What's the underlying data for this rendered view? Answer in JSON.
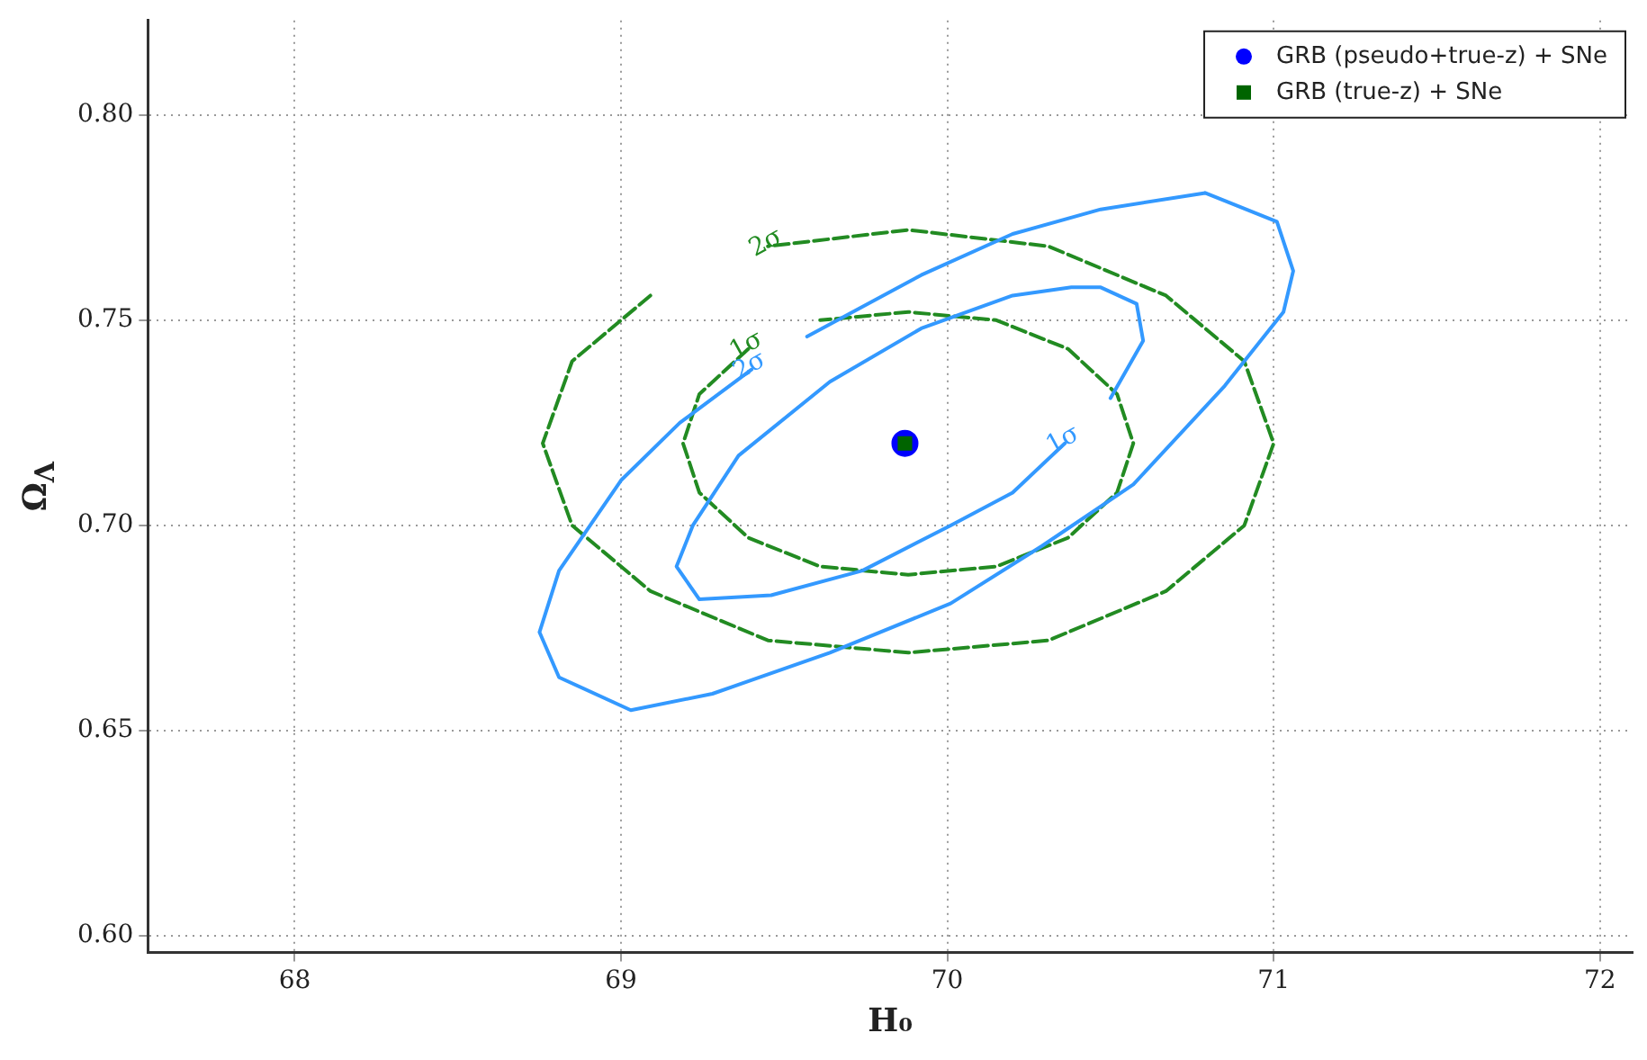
{
  "chart_data": {
    "type": "line",
    "xlabel": "H₀",
    "ylabel": "Ω$_{Λ}$",
    "xlim": [
      67.55,
      72.1
    ],
    "ylim": [
      0.596,
      0.823
    ],
    "xticks": [
      68,
      69,
      70,
      71,
      72
    ],
    "yticks": [
      {
        "value": 0.6,
        "label": "0.60"
      },
      {
        "value": 0.65,
        "label": "0.65"
      },
      {
        "value": 0.7,
        "label": "0.70"
      },
      {
        "value": 0.75,
        "label": "0.75"
      },
      {
        "value": 0.8,
        "label": "0.80"
      }
    ],
    "grid": true,
    "legend": "top right",
    "series": [
      {
        "color": "#3399ff",
        "marker": "none",
        "line_style": "solid",
        "x": [
          70.79,
          71.01,
          71.06,
          71.03,
          70.85,
          70.57,
          70.29,
          70.01,
          69.64,
          69.28,
          69.03,
          68.81,
          68.75,
          68.81,
          69.0,
          69.18,
          69.4,
          null,
          69.57,
          69.92,
          70.2,
          70.47,
          70.79
        ],
        "values": [
          0.781,
          0.774,
          0.762,
          0.752,
          0.734,
          0.71,
          0.695,
          0.681,
          0.669,
          0.659,
          0.655,
          0.663,
          0.674,
          0.689,
          0.711,
          0.725,
          0.738,
          null,
          0.746,
          0.761,
          0.771,
          0.777,
          0.781
        ]
      },
      {
        "color": "#3399ff",
        "marker": "none",
        "line_style": "solid",
        "x": [
          70.5,
          70.6,
          70.58,
          70.47,
          70.38,
          70.2,
          69.92,
          69.64,
          69.36,
          69.22,
          69.17,
          69.24,
          69.46,
          69.74,
          70.01,
          70.2,
          70.36
        ],
        "values": [
          0.731,
          0.745,
          0.754,
          0.758,
          0.758,
          0.756,
          0.748,
          0.735,
          0.717,
          0.7,
          0.69,
          0.682,
          0.683,
          0.689,
          0.7,
          0.708,
          0.72
        ]
      },
      {
        "color": "#228b22",
        "marker": "none",
        "line_style": "dashed",
        "x": [
          69.09,
          68.85,
          68.76,
          68.85,
          69.09,
          69.45,
          69.88,
          70.31,
          70.67,
          70.91,
          71.0,
          70.91,
          70.67,
          70.31,
          69.88,
          69.45
        ],
        "values": [
          0.756,
          0.74,
          0.72,
          0.7,
          0.684,
          0.672,
          0.669,
          0.672,
          0.684,
          0.7,
          0.72,
          0.74,
          0.756,
          0.768,
          0.772,
          0.768
        ]
      },
      {
        "color": "#228b22",
        "marker": "none",
        "line_style": "dashed",
        "x": [
          69.39,
          69.24,
          69.19,
          69.24,
          69.39,
          69.61,
          69.88,
          70.15,
          70.37,
          70.52,
          70.57,
          70.52,
          70.37,
          70.15,
          69.88,
          69.61
        ],
        "values": [
          0.743,
          0.732,
          0.72,
          0.708,
          0.697,
          0.69,
          0.688,
          0.69,
          0.697,
          0.708,
          0.72,
          0.732,
          0.743,
          0.75,
          0.752,
          0.75
        ]
      },
      {
        "type": "scatter",
        "name": "GRB (pseudo+true-z) + SNe",
        "color": "#0000ff",
        "marker": "circle",
        "x": [
          69.87
        ],
        "values": [
          0.72
        ]
      },
      {
        "type": "scatter",
        "name": "GRB (true-z) + SNe",
        "color": "#006400",
        "marker": "square",
        "x": [
          69.87
        ],
        "values": [
          0.72
        ]
      }
    ],
    "annotations": [
      {
        "text": "2σ",
        "x": 69.45,
        "y": 0.768
      },
      {
        "text": "1σ",
        "x": 69.39,
        "y": 0.743
      },
      {
        "text": "2σ",
        "x": 69.4,
        "y": 0.738
      },
      {
        "text": "1σ",
        "x": 70.36,
        "y": 0.72
      }
    ]
  }
}
